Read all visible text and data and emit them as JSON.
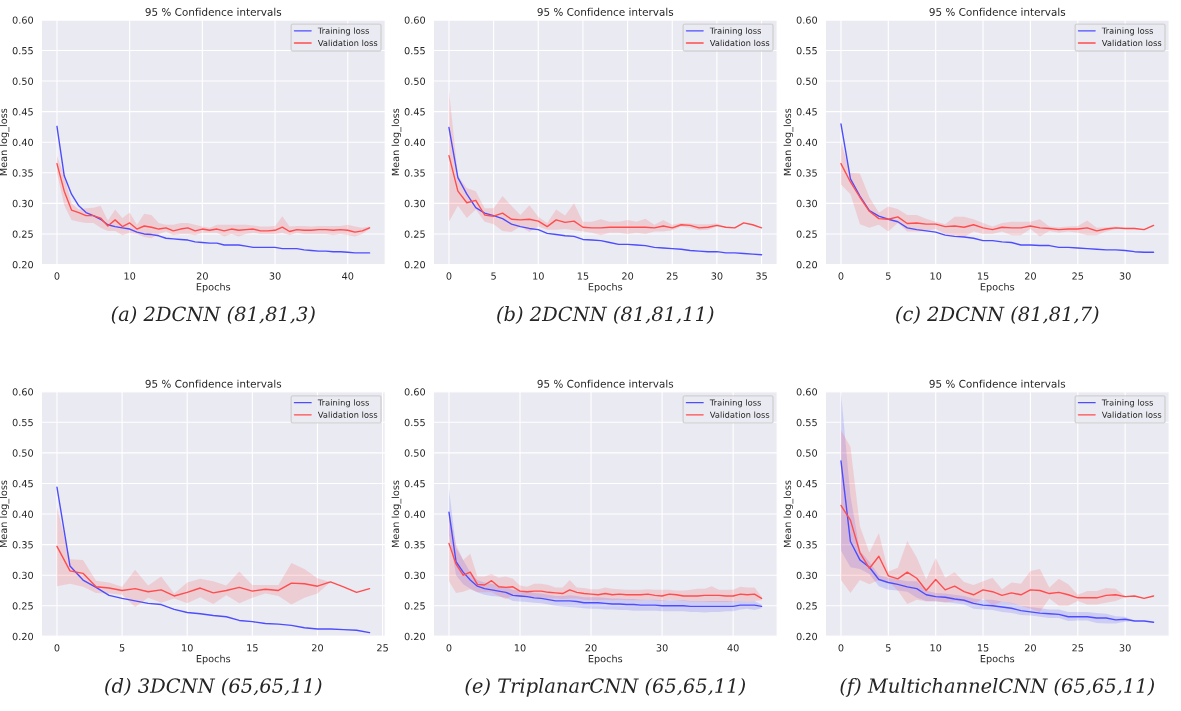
{
  "chart_data": [
    {
      "type": "line",
      "title": "95 % Confidence intervals",
      "xlabel": "Epochs",
      "ylabel": "Mean log_loss",
      "annotations": [
        "(a) 2DCNN (81,81,3)"
      ],
      "legend": "top right",
      "grid": true,
      "xlim": [
        -2.15,
        45.15
      ],
      "xticks": [
        0,
        10,
        20,
        30,
        40
      ],
      "ylim": [
        0.2,
        0.6
      ],
      "yticks": [
        {
          "value": 0.2,
          "label": "0.20"
        },
        {
          "value": 0.25,
          "label": "0.25"
        },
        {
          "value": 0.3,
          "label": "0.30"
        },
        {
          "value": 0.35,
          "label": "0.35"
        },
        {
          "value": 0.4,
          "label": "0.40"
        },
        {
          "value": 0.45,
          "label": "0.45"
        },
        {
          "value": 0.5,
          "label": "0.50"
        },
        {
          "value": 0.55,
          "label": "0.55"
        },
        {
          "value": 0.6,
          "label": "0.60"
        }
      ],
      "series": [
        {
          "name": "Training loss",
          "color": "#4d4dff",
          "x": [
            0,
            1,
            2,
            3,
            4,
            5,
            6,
            7,
            8,
            9,
            10,
            11,
            12,
            13,
            14,
            15,
            16,
            17,
            18,
            19,
            20,
            21,
            22,
            23,
            24,
            25,
            26,
            27,
            28,
            29,
            30,
            31,
            32,
            33,
            34,
            35,
            36,
            37,
            38,
            39,
            40,
            41,
            42,
            43
          ],
          "values": [
            0.426,
            0.345,
            0.315,
            0.296,
            0.285,
            0.28,
            0.274,
            0.265,
            0.262,
            0.26,
            0.258,
            0.253,
            0.25,
            0.249,
            0.247,
            0.243,
            0.242,
            0.241,
            0.24,
            0.237,
            0.236,
            0.235,
            0.235,
            0.232,
            0.232,
            0.232,
            0.23,
            0.228,
            0.228,
            0.228,
            0.228,
            0.226,
            0.226,
            0.226,
            0.224,
            0.223,
            0.222,
            0.222,
            0.221,
            0.221,
            0.22,
            0.219,
            0.219,
            0.219
          ]
        },
        {
          "name": "Validation loss",
          "color": "#ff4d4d",
          "x": [
            0,
            1,
            2,
            3,
            4,
            5,
            6,
            7,
            8,
            9,
            10,
            11,
            12,
            13,
            14,
            15,
            16,
            17,
            18,
            19,
            20,
            21,
            22,
            23,
            24,
            25,
            26,
            27,
            28,
            29,
            30,
            31,
            32,
            33,
            34,
            35,
            36,
            37,
            38,
            39,
            40,
            41,
            42,
            43
          ],
          "values": [
            0.365,
            0.32,
            0.289,
            0.285,
            0.28,
            0.28,
            0.276,
            0.263,
            0.273,
            0.262,
            0.268,
            0.258,
            0.263,
            0.261,
            0.258,
            0.26,
            0.255,
            0.258,
            0.26,
            0.255,
            0.258,
            0.256,
            0.258,
            0.255,
            0.258,
            0.256,
            0.257,
            0.258,
            0.255,
            0.255,
            0.256,
            0.261,
            0.254,
            0.257,
            0.256,
            0.256,
            0.257,
            0.257,
            0.256,
            0.257,
            0.256,
            0.253,
            0.255,
            0.26
          ],
          "upper": [
            0.378,
            0.345,
            0.3,
            0.29,
            0.292,
            0.293,
            0.296,
            0.272,
            0.29,
            0.276,
            0.285,
            0.265,
            0.283,
            0.281,
            0.268,
            0.265,
            0.265,
            0.268,
            0.268,
            0.265,
            0.262,
            0.26,
            0.265,
            0.265,
            0.265,
            0.265,
            0.265,
            0.264,
            0.262,
            0.262,
            0.263,
            0.279,
            0.262,
            0.263,
            0.263,
            0.262,
            0.263,
            0.263,
            0.263,
            0.263,
            0.265,
            0.262,
            0.26,
            0.262
          ],
          "lower": [
            0.35,
            0.297,
            0.273,
            0.27,
            0.268,
            0.268,
            0.26,
            0.255,
            0.255,
            0.248,
            0.252,
            0.25,
            0.245,
            0.243,
            0.25,
            0.254,
            0.248,
            0.25,
            0.25,
            0.248,
            0.252,
            0.252,
            0.252,
            0.246,
            0.25,
            0.246,
            0.25,
            0.252,
            0.25,
            0.25,
            0.25,
            0.252,
            0.248,
            0.252,
            0.25,
            0.25,
            0.25,
            0.25,
            0.248,
            0.25,
            0.248,
            0.246,
            0.25,
            0.258
          ]
        }
      ]
    },
    {
      "type": "line",
      "title": "95 % Confidence intervals",
      "xlabel": "Epochs",
      "ylabel": "Mean log_loss",
      "annotations": [
        "(b) 2DCNN (81,81,11)"
      ],
      "legend": "top right",
      "grid": true,
      "xlim": [
        -1.75,
        36.75
      ],
      "xticks": [
        0,
        5,
        10,
        15,
        20,
        25,
        30,
        35
      ],
      "ylim": [
        0.2,
        0.6
      ],
      "yticks": [
        {
          "value": 0.2,
          "label": "0.20"
        },
        {
          "value": 0.25,
          "label": "0.25"
        },
        {
          "value": 0.3,
          "label": "0.30"
        },
        {
          "value": 0.35,
          "label": "0.35"
        },
        {
          "value": 0.4,
          "label": "0.40"
        },
        {
          "value": 0.45,
          "label": "0.45"
        },
        {
          "value": 0.5,
          "label": "0.50"
        },
        {
          "value": 0.55,
          "label": "0.55"
        },
        {
          "value": 0.6,
          "label": "0.60"
        }
      ],
      "series": [
        {
          "name": "Training loss",
          "color": "#4d4dff",
          "x": [
            0,
            1,
            2,
            3,
            4,
            5,
            6,
            7,
            8,
            9,
            10,
            11,
            12,
            13,
            14,
            15,
            16,
            17,
            18,
            19,
            20,
            21,
            22,
            23,
            24,
            25,
            26,
            27,
            28,
            29,
            30,
            31,
            32,
            33,
            34,
            35
          ],
          "values": [
            0.424,
            0.342,
            0.315,
            0.293,
            0.284,
            0.28,
            0.275,
            0.266,
            0.262,
            0.259,
            0.257,
            0.251,
            0.249,
            0.247,
            0.246,
            0.241,
            0.24,
            0.239,
            0.236,
            0.233,
            0.233,
            0.232,
            0.231,
            0.228,
            0.227,
            0.226,
            0.225,
            0.223,
            0.222,
            0.221,
            0.221,
            0.219,
            0.219,
            0.218,
            0.217,
            0.216
          ]
        },
        {
          "name": "Validation loss",
          "color": "#ff4d4d",
          "x": [
            0,
            1,
            2,
            3,
            4,
            5,
            6,
            7,
            8,
            9,
            10,
            11,
            12,
            13,
            14,
            15,
            16,
            17,
            18,
            19,
            20,
            21,
            22,
            23,
            24,
            25,
            26,
            27,
            28,
            29,
            30,
            31,
            32,
            33,
            34,
            35
          ],
          "values": [
            0.378,
            0.32,
            0.301,
            0.305,
            0.281,
            0.279,
            0.284,
            0.274,
            0.273,
            0.274,
            0.271,
            0.262,
            0.273,
            0.269,
            0.271,
            0.261,
            0.26,
            0.26,
            0.261,
            0.261,
            0.261,
            0.261,
            0.261,
            0.26,
            0.263,
            0.26,
            0.265,
            0.264,
            0.26,
            0.261,
            0.264,
            0.261,
            0.26,
            0.268,
            0.265,
            0.26
          ],
          "upper": [
            0.485,
            0.345,
            0.325,
            0.32,
            0.292,
            0.292,
            0.312,
            0.296,
            0.281,
            0.297,
            0.278,
            0.268,
            0.29,
            0.28,
            0.3,
            0.27,
            0.27,
            0.274,
            0.27,
            0.27,
            0.273,
            0.27,
            0.275,
            0.265,
            0.273,
            0.265,
            0.268,
            0.267,
            0.266,
            0.266,
            0.267,
            0.261,
            0.26,
            0.268,
            0.265,
            0.26
          ],
          "lower": [
            0.27,
            0.296,
            0.276,
            0.29,
            0.27,
            0.266,
            0.255,
            0.253,
            0.262,
            0.253,
            0.262,
            0.257,
            0.257,
            0.258,
            0.256,
            0.254,
            0.252,
            0.248,
            0.252,
            0.252,
            0.25,
            0.252,
            0.25,
            0.254,
            0.254,
            0.256,
            0.262,
            0.26,
            0.256,
            0.257,
            0.262,
            0.261,
            0.26,
            0.268,
            0.265,
            0.26
          ]
        }
      ]
    },
    {
      "type": "line",
      "title": "95 % Confidence intervals",
      "xlabel": "Epochs",
      "ylabel": "Mean log_loss",
      "annotations": [
        "(c) 2DCNN (81,81,7)"
      ],
      "legend": "top right",
      "grid": true,
      "xlim": [
        -1.65,
        34.65
      ],
      "xticks": [
        0,
        5,
        10,
        15,
        20,
        25,
        30
      ],
      "ylim": [
        0.2,
        0.6
      ],
      "yticks": [
        {
          "value": 0.2,
          "label": "0.20"
        },
        {
          "value": 0.25,
          "label": "0.25"
        },
        {
          "value": 0.3,
          "label": "0.30"
        },
        {
          "value": 0.35,
          "label": "0.35"
        },
        {
          "value": 0.4,
          "label": "0.40"
        },
        {
          "value": 0.45,
          "label": "0.45"
        },
        {
          "value": 0.5,
          "label": "0.50"
        },
        {
          "value": 0.55,
          "label": "0.55"
        },
        {
          "value": 0.6,
          "label": "0.60"
        }
      ],
      "series": [
        {
          "name": "Training loss",
          "color": "#4d4dff",
          "x": [
            0,
            1,
            2,
            3,
            4,
            5,
            6,
            7,
            8,
            9,
            10,
            11,
            12,
            13,
            14,
            15,
            16,
            17,
            18,
            19,
            20,
            21,
            22,
            23,
            24,
            25,
            26,
            27,
            28,
            29,
            30,
            31,
            32,
            33
          ],
          "values": [
            0.43,
            0.34,
            0.312,
            0.288,
            0.279,
            0.274,
            0.27,
            0.26,
            0.257,
            0.255,
            0.253,
            0.248,
            0.246,
            0.245,
            0.243,
            0.239,
            0.239,
            0.237,
            0.236,
            0.232,
            0.232,
            0.231,
            0.231,
            0.228,
            0.228,
            0.227,
            0.226,
            0.225,
            0.224,
            0.224,
            0.223,
            0.221,
            0.22,
            0.22
          ]
        },
        {
          "name": "Validation loss",
          "color": "#ff4d4d",
          "x": [
            0,
            1,
            2,
            3,
            4,
            5,
            6,
            7,
            8,
            9,
            10,
            11,
            12,
            13,
            14,
            15,
            16,
            17,
            18,
            19,
            20,
            21,
            22,
            23,
            24,
            25,
            26,
            27,
            28,
            29,
            30,
            31,
            32,
            33
          ],
          "values": [
            0.365,
            0.335,
            0.31,
            0.287,
            0.275,
            0.274,
            0.278,
            0.267,
            0.268,
            0.266,
            0.266,
            0.262,
            0.263,
            0.261,
            0.265,
            0.26,
            0.257,
            0.261,
            0.26,
            0.26,
            0.263,
            0.26,
            0.259,
            0.257,
            0.258,
            0.258,
            0.26,
            0.255,
            0.258,
            0.26,
            0.259,
            0.259,
            0.257,
            0.264
          ],
          "upper": [
            0.4,
            0.35,
            0.349,
            0.31,
            0.285,
            0.295,
            0.291,
            0.281,
            0.281,
            0.275,
            0.27,
            0.266,
            0.278,
            0.278,
            0.274,
            0.268,
            0.262,
            0.268,
            0.27,
            0.27,
            0.27,
            0.274,
            0.262,
            0.261,
            0.262,
            0.263,
            0.272,
            0.26,
            0.261,
            0.262,
            0.26,
            0.26,
            0.257,
            0.264
          ],
          "lower": [
            0.331,
            0.315,
            0.266,
            0.26,
            0.265,
            0.254,
            0.268,
            0.254,
            0.254,
            0.255,
            0.258,
            0.25,
            0.248,
            0.245,
            0.254,
            0.25,
            0.25,
            0.254,
            0.248,
            0.248,
            0.258,
            0.246,
            0.255,
            0.252,
            0.254,
            0.252,
            0.248,
            0.248,
            0.254,
            0.258,
            0.258,
            0.258,
            0.257,
            0.264
          ]
        }
      ]
    },
    {
      "type": "line",
      "title": "95 % Confidence intervals",
      "xlabel": "Epochs",
      "ylabel": "Mean log_loss",
      "annotations": [
        "(d) 3DCNN (65,65,11)"
      ],
      "legend": "top right",
      "grid": true,
      "xlim": [
        -1.2,
        25.2
      ],
      "xticks": [
        0,
        5,
        10,
        15,
        20,
        25
      ],
      "ylim": [
        0.2,
        0.6
      ],
      "yticks": [
        {
          "value": 0.2,
          "label": "0.20"
        },
        {
          "value": 0.25,
          "label": "0.25"
        },
        {
          "value": 0.3,
          "label": "0.30"
        },
        {
          "value": 0.35,
          "label": "0.35"
        },
        {
          "value": 0.4,
          "label": "0.40"
        },
        {
          "value": 0.45,
          "label": "0.45"
        },
        {
          "value": 0.5,
          "label": "0.50"
        },
        {
          "value": 0.55,
          "label": "0.55"
        },
        {
          "value": 0.6,
          "label": "0.60"
        }
      ],
      "series": [
        {
          "name": "Training loss",
          "color": "#4d4dff",
          "x": [
            0,
            1,
            2,
            3,
            4,
            5,
            6,
            7,
            8,
            9,
            10,
            11,
            12,
            13,
            14,
            15,
            16,
            17,
            18,
            19,
            20,
            21,
            22,
            23,
            24
          ],
          "values": [
            0.444,
            0.315,
            0.292,
            0.28,
            0.267,
            0.262,
            0.258,
            0.254,
            0.252,
            0.244,
            0.239,
            0.237,
            0.234,
            0.232,
            0.226,
            0.224,
            0.221,
            0.22,
            0.218,
            0.214,
            0.212,
            0.212,
            0.211,
            0.21,
            0.206
          ]
        },
        {
          "name": "Validation loss",
          "color": "#ff4d4d",
          "x": [
            0,
            1,
            2,
            3,
            4,
            5,
            6,
            7,
            8,
            9,
            10,
            11,
            12,
            13,
            14,
            15,
            16,
            17,
            18,
            19,
            20,
            21,
            22,
            23,
            24
          ],
          "values": [
            0.347,
            0.307,
            0.303,
            0.281,
            0.279,
            0.275,
            0.278,
            0.273,
            0.276,
            0.266,
            0.272,
            0.279,
            0.271,
            0.275,
            0.28,
            0.274,
            0.277,
            0.275,
            0.287,
            0.286,
            0.282,
            0.289,
            0.281,
            0.272,
            0.278
          ],
          "upper": [
            0.412,
            0.326,
            0.325,
            0.291,
            0.288,
            0.281,
            0.309,
            0.283,
            0.298,
            0.27,
            0.288,
            0.294,
            0.29,
            0.283,
            0.306,
            0.284,
            0.284,
            0.284,
            0.32,
            0.31,
            0.295,
            0.289,
            0.281,
            0.272,
            0.278
          ],
          "lower": [
            0.282,
            0.286,
            0.281,
            0.271,
            0.27,
            0.268,
            0.248,
            0.263,
            0.255,
            0.262,
            0.254,
            0.264,
            0.253,
            0.267,
            0.254,
            0.263,
            0.27,
            0.266,
            0.252,
            0.263,
            0.27,
            0.289,
            0.281,
            0.272,
            0.278
          ]
        }
      ]
    },
    {
      "type": "line",
      "title": "95 % Confidence intervals",
      "xlabel": "Epochs",
      "ylabel": "Mean log_loss",
      "annotations": [
        "(e) TriplanarCNN (65,65,11)"
      ],
      "legend": "top right",
      "grid": true,
      "xlim": [
        -2.2,
        46.2
      ],
      "xticks": [
        0,
        10,
        20,
        30,
        40
      ],
      "ylim": [
        0.2,
        0.6
      ],
      "yticks": [
        {
          "value": 0.2,
          "label": "0.20"
        },
        {
          "value": 0.25,
          "label": "0.25"
        },
        {
          "value": 0.3,
          "label": "0.30"
        },
        {
          "value": 0.35,
          "label": "0.35"
        },
        {
          "value": 0.4,
          "label": "0.40"
        },
        {
          "value": 0.45,
          "label": "0.45"
        },
        {
          "value": 0.5,
          "label": "0.50"
        },
        {
          "value": 0.55,
          "label": "0.55"
        },
        {
          "value": 0.6,
          "label": "0.60"
        }
      ],
      "series": [
        {
          "name": "Training loss",
          "color": "#4d4dff",
          "x": [
            0,
            1,
            2,
            3,
            4,
            5,
            6,
            7,
            8,
            9,
            10,
            11,
            12,
            13,
            14,
            15,
            16,
            17,
            18,
            19,
            20,
            21,
            22,
            23,
            24,
            25,
            26,
            27,
            28,
            29,
            30,
            31,
            32,
            33,
            34,
            35,
            36,
            37,
            38,
            39,
            40,
            41,
            42,
            43,
            44
          ],
          "values": [
            0.403,
            0.322,
            0.305,
            0.292,
            0.282,
            0.278,
            0.276,
            0.274,
            0.272,
            0.267,
            0.266,
            0.265,
            0.263,
            0.262,
            0.26,
            0.258,
            0.258,
            0.258,
            0.257,
            0.255,
            0.255,
            0.255,
            0.254,
            0.253,
            0.253,
            0.252,
            0.252,
            0.251,
            0.251,
            0.251,
            0.25,
            0.25,
            0.25,
            0.25,
            0.249,
            0.249,
            0.249,
            0.249,
            0.249,
            0.249,
            0.249,
            0.251,
            0.251,
            0.251,
            0.249
          ],
          "upper": [
            0.442,
            0.345,
            0.325,
            0.305,
            0.292,
            0.288,
            0.286,
            0.283,
            0.281,
            0.276,
            0.275,
            0.274,
            0.271,
            0.27,
            0.268,
            0.266,
            0.266,
            0.267,
            0.266,
            0.264,
            0.264,
            0.264,
            0.263,
            0.262,
            0.262,
            0.261,
            0.261,
            0.26,
            0.26,
            0.26,
            0.259,
            0.259,
            0.259,
            0.259,
            0.258,
            0.258,
            0.258,
            0.258,
            0.258,
            0.258,
            0.257,
            0.258,
            0.257,
            0.258,
            0.252
          ],
          "lower": [
            0.365,
            0.3,
            0.285,
            0.278,
            0.272,
            0.268,
            0.266,
            0.265,
            0.263,
            0.258,
            0.257,
            0.256,
            0.255,
            0.254,
            0.252,
            0.25,
            0.249,
            0.248,
            0.247,
            0.246,
            0.245,
            0.245,
            0.244,
            0.244,
            0.243,
            0.243,
            0.242,
            0.242,
            0.242,
            0.242,
            0.241,
            0.241,
            0.241,
            0.241,
            0.24,
            0.24,
            0.239,
            0.24,
            0.24,
            0.241,
            0.241,
            0.244,
            0.245,
            0.243,
            0.246
          ]
        },
        {
          "name": "Validation loss",
          "color": "#ff4d4d",
          "x": [
            0,
            1,
            2,
            3,
            4,
            5,
            6,
            7,
            8,
            9,
            10,
            11,
            12,
            13,
            14,
            15,
            16,
            17,
            18,
            19,
            20,
            21,
            22,
            23,
            24,
            25,
            26,
            27,
            28,
            29,
            30,
            31,
            32,
            33,
            34,
            35,
            36,
            37,
            38,
            39,
            40,
            41,
            42,
            43,
            44
          ],
          "values": [
            0.352,
            0.318,
            0.3,
            0.305,
            0.285,
            0.284,
            0.291,
            0.281,
            0.28,
            0.281,
            0.274,
            0.273,
            0.274,
            0.274,
            0.272,
            0.271,
            0.27,
            0.276,
            0.272,
            0.27,
            0.269,
            0.268,
            0.27,
            0.268,
            0.269,
            0.268,
            0.268,
            0.268,
            0.269,
            0.267,
            0.266,
            0.269,
            0.268,
            0.266,
            0.266,
            0.266,
            0.267,
            0.267,
            0.267,
            0.266,
            0.266,
            0.269,
            0.268,
            0.269,
            0.262
          ],
          "upper": [
            0.405,
            0.35,
            0.325,
            0.335,
            0.298,
            0.298,
            0.302,
            0.296,
            0.298,
            0.294,
            0.283,
            0.281,
            0.286,
            0.286,
            0.284,
            0.28,
            0.28,
            0.292,
            0.28,
            0.279,
            0.277,
            0.277,
            0.28,
            0.278,
            0.277,
            0.276,
            0.276,
            0.276,
            0.277,
            0.276,
            0.276,
            0.276,
            0.275,
            0.275,
            0.276,
            0.278,
            0.278,
            0.282,
            0.276,
            0.276,
            0.276,
            0.281,
            0.28,
            0.28,
            0.265
          ],
          "lower": [
            0.29,
            0.271,
            0.273,
            0.277,
            0.272,
            0.272,
            0.272,
            0.266,
            0.261,
            0.266,
            0.264,
            0.264,
            0.264,
            0.264,
            0.262,
            0.262,
            0.261,
            0.262,
            0.262,
            0.26,
            0.259,
            0.259,
            0.26,
            0.259,
            0.26,
            0.259,
            0.259,
            0.259,
            0.26,
            0.259,
            0.258,
            0.26,
            0.259,
            0.258,
            0.257,
            0.257,
            0.257,
            0.256,
            0.256,
            0.256,
            0.256,
            0.258,
            0.257,
            0.258,
            0.259
          ]
        }
      ]
    },
    {
      "type": "line",
      "title": "95 % Confidence intervals",
      "xlabel": "Epochs",
      "ylabel": "Mean log_loss",
      "annotations": [
        "(f) MultichannelCNN (65,65,11)"
      ],
      "legend": "top right",
      "grid": true,
      "xlim": [
        -1.65,
        34.65
      ],
      "xticks": [
        0,
        5,
        10,
        15,
        20,
        25,
        30
      ],
      "ylim": [
        0.2,
        0.6
      ],
      "yticks": [
        {
          "value": 0.2,
          "label": "0.20"
        },
        {
          "value": 0.25,
          "label": "0.25"
        },
        {
          "value": 0.3,
          "label": "0.30"
        },
        {
          "value": 0.35,
          "label": "0.35"
        },
        {
          "value": 0.4,
          "label": "0.40"
        },
        {
          "value": 0.45,
          "label": "0.45"
        },
        {
          "value": 0.5,
          "label": "0.50"
        },
        {
          "value": 0.55,
          "label": "0.55"
        },
        {
          "value": 0.6,
          "label": "0.60"
        }
      ],
      "series": [
        {
          "name": "Training loss",
          "color": "#4d4dff",
          "x": [
            0,
            1,
            2,
            3,
            4,
            5,
            6,
            7,
            8,
            9,
            10,
            11,
            12,
            13,
            14,
            15,
            16,
            17,
            18,
            19,
            20,
            21,
            22,
            23,
            24,
            25,
            26,
            27,
            28,
            29,
            30,
            31,
            32,
            33
          ],
          "values": [
            0.487,
            0.355,
            0.325,
            0.313,
            0.293,
            0.288,
            0.285,
            0.281,
            0.278,
            0.268,
            0.265,
            0.264,
            0.261,
            0.259,
            0.254,
            0.251,
            0.25,
            0.248,
            0.246,
            0.242,
            0.24,
            0.238,
            0.237,
            0.236,
            0.232,
            0.232,
            0.232,
            0.23,
            0.23,
            0.227,
            0.228,
            0.225,
            0.225,
            0.223
          ],
          "upper": [
            0.6,
            0.43,
            0.34,
            0.322,
            0.3,
            0.296,
            0.293,
            0.29,
            0.29,
            0.275,
            0.271,
            0.27,
            0.268,
            0.266,
            0.262,
            0.26,
            0.26,
            0.257,
            0.255,
            0.25,
            0.248,
            0.246,
            0.244,
            0.244,
            0.24,
            0.24,
            0.24,
            0.238,
            0.237,
            0.233,
            0.232,
            0.225,
            0.225,
            0.223
          ],
          "lower": [
            0.34,
            0.313,
            0.31,
            0.302,
            0.282,
            0.276,
            0.275,
            0.273,
            0.263,
            0.258,
            0.257,
            0.256,
            0.254,
            0.252,
            0.245,
            0.244,
            0.243,
            0.24,
            0.238,
            0.235,
            0.234,
            0.232,
            0.23,
            0.23,
            0.225,
            0.226,
            0.226,
            0.222,
            0.221,
            0.221,
            0.224,
            0.225,
            0.225,
            0.223
          ]
        },
        {
          "name": "Validation loss",
          "color": "#ff4d4d",
          "x": [
            0,
            1,
            2,
            3,
            4,
            5,
            6,
            7,
            8,
            9,
            10,
            11,
            12,
            13,
            14,
            15,
            16,
            17,
            18,
            19,
            20,
            21,
            22,
            23,
            24,
            25,
            26,
            27,
            28,
            29,
            30,
            31,
            32,
            33
          ],
          "values": [
            0.414,
            0.39,
            0.337,
            0.311,
            0.331,
            0.299,
            0.294,
            0.305,
            0.295,
            0.275,
            0.293,
            0.276,
            0.282,
            0.273,
            0.268,
            0.276,
            0.273,
            0.267,
            0.271,
            0.268,
            0.276,
            0.275,
            0.27,
            0.272,
            0.268,
            0.263,
            0.263,
            0.263,
            0.267,
            0.268,
            0.265,
            0.266,
            0.262,
            0.266
          ],
          "upper": [
            0.537,
            0.51,
            0.38,
            0.337,
            0.369,
            0.306,
            0.312,
            0.356,
            0.329,
            0.293,
            0.328,
            0.296,
            0.305,
            0.289,
            0.284,
            0.29,
            0.296,
            0.277,
            0.288,
            0.286,
            0.307,
            0.31,
            0.28,
            0.294,
            0.285,
            0.268,
            0.274,
            0.274,
            0.279,
            0.278,
            0.266,
            0.266,
            0.262,
            0.266
          ],
          "lower": [
            0.292,
            0.271,
            0.292,
            0.285,
            0.292,
            0.29,
            0.275,
            0.253,
            0.26,
            0.257,
            0.258,
            0.255,
            0.258,
            0.257,
            0.252,
            0.262,
            0.25,
            0.257,
            0.254,
            0.25,
            0.245,
            0.24,
            0.262,
            0.25,
            0.25,
            0.258,
            0.252,
            0.252,
            0.255,
            0.258,
            0.264,
            0.266,
            0.262,
            0.266
          ]
        }
      ]
    }
  ]
}
